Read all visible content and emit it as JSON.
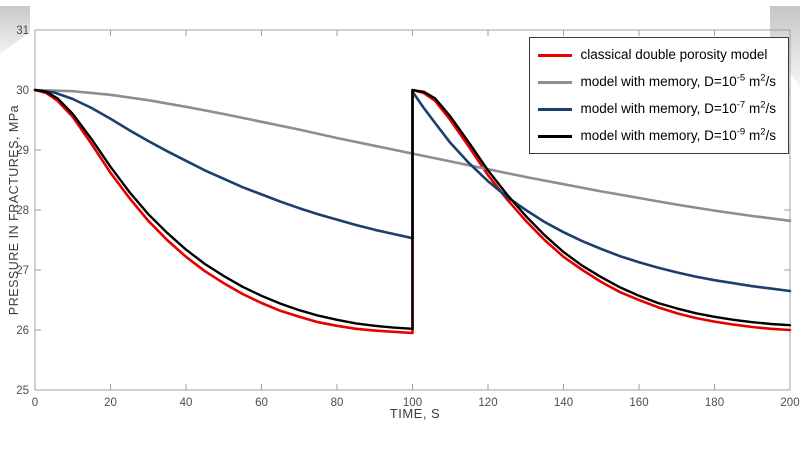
{
  "chart_data": {
    "type": "line",
    "title": "",
    "xlabel": "TIME, S",
    "ylabel": "PRESSURE IN FRACTURES, MPa",
    "xlim": [
      0,
      200
    ],
    "ylim": [
      25,
      31
    ],
    "xticks": [
      0,
      20,
      40,
      60,
      80,
      100,
      120,
      140,
      160,
      180,
      200
    ],
    "yticks": [
      25,
      26,
      27,
      28,
      29,
      30,
      31
    ],
    "grid": false,
    "legend_position": "top-right",
    "axis_box_color": "#a0a0a0",
    "tick_label_color": "#4d4d4d",
    "series": [
      {
        "name": "classical double porosity model",
        "color": "#e60000",
        "width": 2.6,
        "points": [
          [
            0,
            30
          ],
          [
            3,
            29.95
          ],
          [
            6,
            29.82
          ],
          [
            10,
            29.55
          ],
          [
            15,
            29.1
          ],
          [
            20,
            28.62
          ],
          [
            25,
            28.2
          ],
          [
            30,
            27.82
          ],
          [
            35,
            27.5
          ],
          [
            40,
            27.22
          ],
          [
            45,
            26.98
          ],
          [
            50,
            26.78
          ],
          [
            55,
            26.6
          ],
          [
            60,
            26.45
          ],
          [
            65,
            26.32
          ],
          [
            70,
            26.22
          ],
          [
            75,
            26.13
          ],
          [
            80,
            26.07
          ],
          [
            85,
            26.02
          ],
          [
            90,
            25.99
          ],
          [
            95,
            25.97
          ],
          [
            100,
            25.95
          ],
          [
            100,
            30
          ],
          [
            103,
            29.95
          ],
          [
            106,
            29.82
          ],
          [
            110,
            29.5
          ],
          [
            115,
            29.05
          ],
          [
            120,
            28.58
          ],
          [
            125,
            28.18
          ],
          [
            130,
            27.82
          ],
          [
            135,
            27.5
          ],
          [
            140,
            27.22
          ],
          [
            145,
            27.0
          ],
          [
            150,
            26.8
          ],
          [
            155,
            26.63
          ],
          [
            160,
            26.5
          ],
          [
            165,
            26.38
          ],
          [
            170,
            26.28
          ],
          [
            175,
            26.2
          ],
          [
            180,
            26.14
          ],
          [
            185,
            26.09
          ],
          [
            190,
            26.05
          ],
          [
            195,
            26.02
          ],
          [
            200,
            26.0
          ]
        ]
      },
      {
        "name": "model with memory, D=10^-5 m^2/s",
        "color": "#8e8e8e",
        "width": 2.6,
        "points": [
          [
            0,
            30
          ],
          [
            10,
            29.98
          ],
          [
            20,
            29.92
          ],
          [
            30,
            29.83
          ],
          [
            40,
            29.72
          ],
          [
            50,
            29.6
          ],
          [
            60,
            29.47
          ],
          [
            70,
            29.34
          ],
          [
            80,
            29.2
          ],
          [
            90,
            29.07
          ],
          [
            100,
            28.94
          ],
          [
            110,
            28.81
          ],
          [
            120,
            28.68
          ],
          [
            130,
            28.55
          ],
          [
            140,
            28.43
          ],
          [
            150,
            28.31
          ],
          [
            160,
            28.2
          ],
          [
            170,
            28.09
          ],
          [
            180,
            27.99
          ],
          [
            190,
            27.9
          ],
          [
            200,
            27.82
          ]
        ]
      },
      {
        "name": "model with memory, D=10^-7 m^2/s",
        "color": "#1c3f6e",
        "width": 2.6,
        "points": [
          [
            0,
            30
          ],
          [
            5,
            29.96
          ],
          [
            10,
            29.85
          ],
          [
            15,
            29.7
          ],
          [
            20,
            29.52
          ],
          [
            25,
            29.33
          ],
          [
            30,
            29.15
          ],
          [
            35,
            28.98
          ],
          [
            40,
            28.82
          ],
          [
            45,
            28.66
          ],
          [
            50,
            28.52
          ],
          [
            55,
            28.38
          ],
          [
            60,
            28.26
          ],
          [
            65,
            28.14
          ],
          [
            70,
            28.03
          ],
          [
            75,
            27.93
          ],
          [
            80,
            27.84
          ],
          [
            85,
            27.75
          ],
          [
            90,
            27.67
          ],
          [
            95,
            27.6
          ],
          [
            100,
            27.53
          ],
          [
            100,
            29.97
          ],
          [
            103,
            29.7
          ],
          [
            106,
            29.45
          ],
          [
            110,
            29.12
          ],
          [
            115,
            28.78
          ],
          [
            120,
            28.48
          ],
          [
            125,
            28.22
          ],
          [
            130,
            28.0
          ],
          [
            135,
            27.8
          ],
          [
            140,
            27.63
          ],
          [
            145,
            27.48
          ],
          [
            150,
            27.35
          ],
          [
            155,
            27.23
          ],
          [
            160,
            27.13
          ],
          [
            165,
            27.04
          ],
          [
            170,
            26.96
          ],
          [
            175,
            26.89
          ],
          [
            180,
            26.83
          ],
          [
            185,
            26.78
          ],
          [
            190,
            26.73
          ],
          [
            195,
            26.69
          ],
          [
            200,
            26.65
          ]
        ]
      },
      {
        "name": "model with memory, D=10^-9 m^2/s",
        "color": "#000000",
        "width": 2.4,
        "points": [
          [
            0,
            30
          ],
          [
            3,
            29.97
          ],
          [
            6,
            29.86
          ],
          [
            10,
            29.6
          ],
          [
            15,
            29.18
          ],
          [
            20,
            28.72
          ],
          [
            25,
            28.3
          ],
          [
            30,
            27.93
          ],
          [
            35,
            27.62
          ],
          [
            40,
            27.34
          ],
          [
            45,
            27.1
          ],
          [
            50,
            26.9
          ],
          [
            55,
            26.72
          ],
          [
            60,
            26.57
          ],
          [
            65,
            26.44
          ],
          [
            70,
            26.33
          ],
          [
            75,
            26.24
          ],
          [
            80,
            26.17
          ],
          [
            85,
            26.11
          ],
          [
            90,
            26.07
          ],
          [
            95,
            26.04
          ],
          [
            100,
            26.02
          ],
          [
            100,
            30
          ],
          [
            103,
            29.97
          ],
          [
            106,
            29.86
          ],
          [
            110,
            29.56
          ],
          [
            115,
            29.12
          ],
          [
            120,
            28.66
          ],
          [
            125,
            28.26
          ],
          [
            130,
            27.9
          ],
          [
            135,
            27.58
          ],
          [
            140,
            27.3
          ],
          [
            145,
            27.07
          ],
          [
            150,
            26.88
          ],
          [
            155,
            26.71
          ],
          [
            160,
            26.57
          ],
          [
            165,
            26.45
          ],
          [
            170,
            26.36
          ],
          [
            175,
            26.28
          ],
          [
            180,
            26.22
          ],
          [
            185,
            26.17
          ],
          [
            190,
            26.13
          ],
          [
            195,
            26.1
          ],
          [
            200,
            26.08
          ]
        ]
      }
    ],
    "legend": [
      {
        "color": "#e60000",
        "segments": [
          {
            "text": "classical double porosity model",
            "sup": false
          }
        ]
      },
      {
        "color": "#8e8e8e",
        "segments": [
          {
            "text": "model with memory, D=10",
            "sup": false
          },
          {
            "text": "-5",
            "sup": true
          },
          {
            "text": " m",
            "sup": false
          },
          {
            "text": "2",
            "sup": true
          },
          {
            "text": "/s",
            "sup": false
          }
        ]
      },
      {
        "color": "#1c3f6e",
        "segments": [
          {
            "text": "model with memory, D=10",
            "sup": false
          },
          {
            "text": "-7",
            "sup": true
          },
          {
            "text": " m",
            "sup": false
          },
          {
            "text": "2",
            "sup": true
          },
          {
            "text": "/s",
            "sup": false
          }
        ]
      },
      {
        "color": "#000000",
        "segments": [
          {
            "text": "model with memory, D=10",
            "sup": false
          },
          {
            "text": "-9",
            "sup": true
          },
          {
            "text": " m",
            "sup": false
          },
          {
            "text": "2",
            "sup": true
          },
          {
            "text": "/s",
            "sup": false
          }
        ]
      }
    ]
  }
}
